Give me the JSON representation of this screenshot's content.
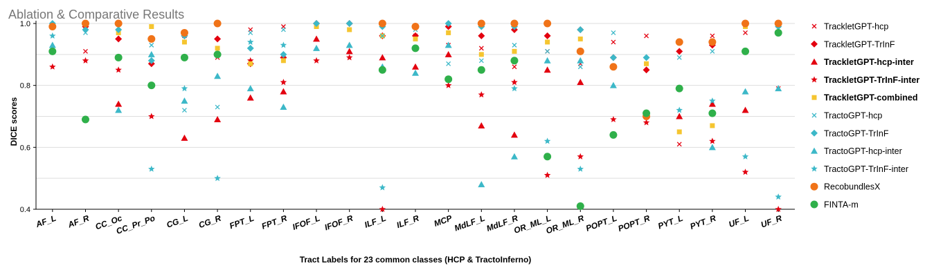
{
  "chart_data": {
    "type": "scatter",
    "title": "Ablation & Comparative Results",
    "xlabel": "Tract Labels for 23 common classes (HCP & TractoInferno)",
    "ylabel": "DICE scores",
    "ylim": [
      0.4,
      1.0
    ],
    "yticks": [
      "0.4",
      "0.6",
      "0.8",
      "1.0"
    ],
    "grid": true,
    "legend_position": "right",
    "categories": [
      "AF_L",
      "AF_R",
      "CC_Oc",
      "CC_Pr_Po",
      "CG_L",
      "CG_R",
      "FPT_L",
      "FPT_R",
      "IFOF_L",
      "IFOF_R",
      "ILF_L",
      "ILF_R",
      "MCP",
      "MdLF_L",
      "MdLF_R",
      "OR_ML_L",
      "OR_ML_R",
      "POPT_L",
      "POPT_R",
      "PYT_L",
      "PYT_R",
      "UF_L",
      "UF_R"
    ],
    "series": [
      {
        "name": "TrackletGPT-hcp",
        "bold": false,
        "marker": "x",
        "color": "#e3000f",
        "values": [
          null,
          0.91,
          0.97,
          null,
          0.96,
          0.89,
          0.98,
          0.99,
          0.99,
          0.98,
          0.96,
          0.96,
          0.93,
          0.92,
          0.86,
          0.91,
          0.87,
          0.94,
          0.96,
          0.61,
          0.96,
          0.97,
          0.79
        ]
      },
      {
        "name": "TrackletGPT-TrInF",
        "bold": false,
        "marker": "diamond",
        "color": "#e3000f",
        "values": [
          0.99,
          0.99,
          0.95,
          0.87,
          0.96,
          0.95,
          0.87,
          0.89,
          1.0,
          1.0,
          0.96,
          0.96,
          0.99,
          0.96,
          0.98,
          0.96,
          0.98,
          0.89,
          0.85,
          0.91,
          0.93,
          1.0,
          1.0
        ]
      },
      {
        "name": "TrackletGPT-hcp-inter",
        "bold": true,
        "marker": "triangle",
        "color": "#e3000f",
        "values": [
          null,
          null,
          0.74,
          null,
          0.63,
          0.69,
          0.76,
          0.78,
          0.95,
          0.91,
          0.89,
          0.86,
          0.9,
          0.67,
          0.64,
          0.85,
          0.81,
          null,
          null,
          0.7,
          0.74,
          0.72,
          null
        ]
      },
      {
        "name": "TrackletGPT-TrInF-inter",
        "bold": true,
        "marker": "star",
        "color": "#e3000f",
        "values": [
          0.86,
          0.88,
          0.85,
          0.7,
          null,
          null,
          0.88,
          0.81,
          0.88,
          0.89,
          0.4,
          null,
          0.8,
          0.77,
          0.81,
          0.51,
          0.57,
          0.69,
          0.68,
          null,
          0.62,
          0.52,
          0.4
        ]
      },
      {
        "name": "TrackletGPT-combined",
        "bold": true,
        "marker": "square",
        "color": "#f5c530",
        "values": [
          null,
          null,
          0.97,
          0.99,
          0.94,
          0.92,
          0.87,
          0.88,
          0.99,
          0.98,
          0.96,
          0.95,
          0.97,
          0.9,
          0.91,
          0.94,
          0.95,
          0.86,
          0.87,
          0.65,
          0.67,
          0.99,
          null
        ]
      },
      {
        "name": "TractoGPT-hcp",
        "bold": false,
        "marker": "x",
        "color": "#3cb8c8",
        "values": [
          null,
          0.97,
          null,
          0.93,
          0.72,
          0.73,
          0.97,
          0.98,
          null,
          null,
          0.96,
          0.98,
          0.87,
          0.88,
          0.93,
          0.91,
          0.86,
          0.97,
          null,
          0.89,
          0.91,
          null,
          null
        ]
      },
      {
        "name": "TractoGPT-TrInF",
        "bold": false,
        "marker": "diamond",
        "color": "#3cb8c8",
        "values": [
          1.0,
          0.98,
          0.98,
          0.88,
          0.96,
          1.0,
          0.92,
          0.9,
          1.0,
          1.0,
          0.99,
          null,
          1.0,
          0.99,
          0.99,
          1.0,
          0.98,
          0.89,
          0.89,
          0.94,
          null,
          1.0,
          0.99
        ]
      },
      {
        "name": "TractoGPT-hcp-inter",
        "bold": false,
        "marker": "triangle",
        "color": "#3cb8c8",
        "values": [
          0.93,
          null,
          0.72,
          0.9,
          0.75,
          0.83,
          0.79,
          0.73,
          0.92,
          0.93,
          0.86,
          0.84,
          0.93,
          0.48,
          0.57,
          0.88,
          0.88,
          0.8,
          null,
          null,
          0.6,
          0.78,
          0.79
        ]
      },
      {
        "name": "TractoGPT-TrInF-inter",
        "bold": false,
        "marker": "star",
        "color": "#3cb8c8",
        "values": [
          0.96,
          null,
          null,
          0.53,
          0.79,
          0.5,
          0.94,
          0.93,
          null,
          null,
          0.47,
          null,
          null,
          null,
          0.79,
          0.62,
          0.53,
          null,
          null,
          0.72,
          0.75,
          0.57,
          0.44
        ]
      },
      {
        "name": "RecobundlesX",
        "bold": false,
        "marker": "circle",
        "color": "#f07318",
        "values": [
          0.99,
          1.0,
          1.0,
          0.95,
          0.97,
          1.0,
          null,
          null,
          null,
          null,
          1.0,
          0.99,
          null,
          1.0,
          1.0,
          1.0,
          0.91,
          0.86,
          0.7,
          0.94,
          0.94,
          1.0,
          1.0
        ]
      },
      {
        "name": "FINTA-m",
        "bold": false,
        "marker": "circle",
        "color": "#2fb04a",
        "values": [
          0.91,
          0.69,
          0.89,
          0.8,
          0.89,
          0.9,
          null,
          null,
          null,
          null,
          0.85,
          0.92,
          0.82,
          0.85,
          0.88,
          0.57,
          0.41,
          0.64,
          0.71,
          0.79,
          0.71,
          0.91,
          0.97
        ]
      }
    ]
  }
}
